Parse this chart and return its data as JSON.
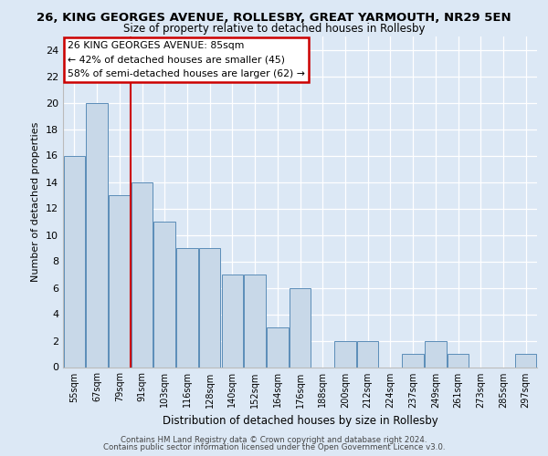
{
  "title1": "26, KING GEORGES AVENUE, ROLLESBY, GREAT YARMOUTH, NR29 5EN",
  "title2": "Size of property relative to detached houses in Rollesby",
  "xlabel": "Distribution of detached houses by size in Rollesby",
  "ylabel": "Number of detached properties",
  "categories": [
    "55sqm",
    "67sqm",
    "79sqm",
    "91sqm",
    "103sqm",
    "116sqm",
    "128sqm",
    "140sqm",
    "152sqm",
    "164sqm",
    "176sqm",
    "188sqm",
    "200sqm",
    "212sqm",
    "224sqm",
    "237sqm",
    "249sqm",
    "261sqm",
    "273sqm",
    "285sqm",
    "297sqm"
  ],
  "values": [
    16,
    20,
    13,
    14,
    11,
    9,
    9,
    7,
    7,
    3,
    6,
    0,
    2,
    2,
    0,
    1,
    2,
    1,
    0,
    0,
    1
  ],
  "bar_color": "#c8d8e8",
  "bar_edge_color": "#5b8db8",
  "ylim": [
    0,
    25
  ],
  "yticks": [
    0,
    2,
    4,
    6,
    8,
    10,
    12,
    14,
    16,
    18,
    20,
    22,
    24
  ],
  "redline_index": 2.5,
  "annotation_text1": "26 KING GEORGES AVENUE: 85sqm",
  "annotation_text2": "← 42% of detached houses are smaller (45)",
  "annotation_text3": "58% of semi-detached houses are larger (62) →",
  "footer1": "Contains HM Land Registry data © Crown copyright and database right 2024.",
  "footer2": "Contains public sector information licensed under the Open Government Licence v3.0.",
  "bg_color": "#dce8f5",
  "plot_bg_color": "#dce8f5",
  "annotation_box_color": "#ffffff",
  "annotation_box_edge": "#cc0000",
  "redline_color": "#cc0000",
  "grid_color": "#ffffff"
}
